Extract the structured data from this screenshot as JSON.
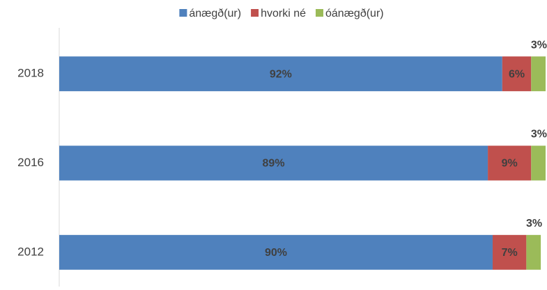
{
  "chart_data": {
    "type": "stacked-bar-horizontal",
    "categories": [
      "2018",
      "2016",
      "2012"
    ],
    "series": [
      {
        "name": "ánægð(ur)",
        "color": "#4f81bd",
        "values": [
          92,
          89,
          90
        ],
        "value_labels": [
          "92%",
          "89%",
          "90%"
        ]
      },
      {
        "name": "hvorki né",
        "color": "#c0504d",
        "values": [
          6,
          9,
          7
        ],
        "value_labels": [
          "6%",
          "9%",
          "7%"
        ]
      },
      {
        "name": "óánægð(ur)",
        "color": "#9bbb59",
        "values": [
          3,
          3,
          3
        ],
        "value_labels": [
          "3%",
          "3%",
          "3%"
        ]
      }
    ],
    "xlim": [
      0,
      101
    ],
    "legend": "top"
  }
}
